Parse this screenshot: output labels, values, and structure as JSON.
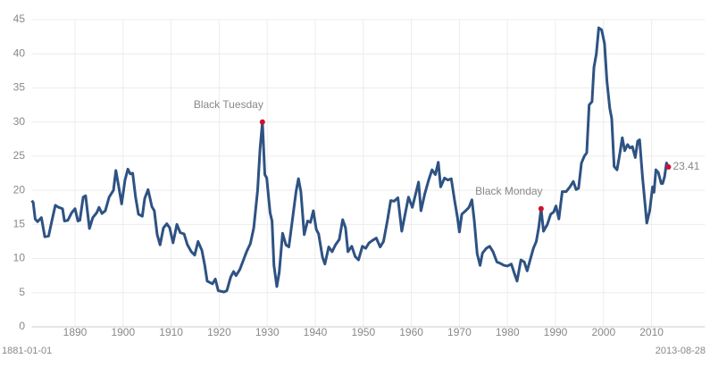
{
  "chart_data": {
    "type": "line",
    "x": [
      1881,
      1881.3,
      1881.7,
      1882.2,
      1883,
      1883.7,
      1884.5,
      1885.2,
      1885.9,
      1886.6,
      1887.4,
      1887.8,
      1888.5,
      1889.3,
      1890,
      1890.6,
      1891,
      1891.7,
      1892.2,
      1893,
      1893.7,
      1894.5,
      1895,
      1895.6,
      1896.3,
      1897.1,
      1898,
      1898.5,
      1899.1,
      1899.7,
      1900.4,
      1901,
      1901.5,
      1902,
      1902.6,
      1903.2,
      1904,
      1904.5,
      1905.2,
      1906,
      1906.5,
      1907.1,
      1907.7,
      1908.4,
      1909.1,
      1909.7,
      1910.4,
      1911.2,
      1911.9,
      1912.7,
      1913.4,
      1914.2,
      1914.9,
      1915.6,
      1916.4,
      1917,
      1917.5,
      1918.6,
      1919.2,
      1919.8,
      1921,
      1921.6,
      1922.4,
      1923,
      1923.5,
      1924.3,
      1925,
      1925.7,
      1926.5,
      1927.2,
      1928,
      1928.5,
      1929,
      1929.5,
      1929.9,
      1930.6,
      1931,
      1931.4,
      1932,
      1932.5,
      1933.2,
      1933.9,
      1934.5,
      1935.3,
      1936,
      1936.5,
      1937,
      1937.7,
      1938.4,
      1939,
      1939.6,
      1940.2,
      1940.7,
      1941.5,
      1942,
      1942.8,
      1943.5,
      1944.2,
      1945,
      1945.7,
      1946.3,
      1946.8,
      1947.6,
      1948.3,
      1949,
      1949.8,
      1950.5,
      1951.2,
      1952,
      1952.7,
      1953.5,
      1954.2,
      1955,
      1955.7,
      1956.4,
      1957.2,
      1958,
      1958.7,
      1959.4,
      1960.2,
      1960.9,
      1961.5,
      1962,
      1962.8,
      1963.6,
      1964.3,
      1965,
      1965.6,
      1966.1,
      1966.9,
      1967.6,
      1968.3,
      1969,
      1969.6,
      1970,
      1970.5,
      1971.3,
      1972,
      1972.6,
      1973.1,
      1973.7,
      1974.3,
      1974.8,
      1975.6,
      1976.3,
      1977,
      1977.8,
      1978.5,
      1979.3,
      1980,
      1980.8,
      1981.5,
      1982,
      1982.8,
      1983.5,
      1984.1,
      1984.8,
      1985.4,
      1986,
      1986.5,
      1987,
      1987.5,
      1988.3,
      1989,
      1989.6,
      1990.1,
      1990.7,
      1991.4,
      1992.2,
      1993,
      1993.7,
      1994.3,
      1994.8,
      1995.4,
      1996,
      1996.5,
      1997,
      1997.6,
      1998,
      1998.5,
      1999,
      1999.6,
      2000.2,
      2000.7,
      2001.3,
      2001.7,
      2002.2,
      2002.8,
      2003.3,
      2003.9,
      2004.4,
      2005,
      2005.5,
      2006,
      2006.6,
      2007.1,
      2007.5,
      2008.1,
      2008.5,
      2009,
      2009.6,
      2010.2,
      2010.5,
      2010.9,
      2011.4,
      2012,
      2012.3,
      2012.7,
      2013.1,
      2013.5
    ],
    "values": [
      18.5,
      18.2,
      15.8,
      15.4,
      16,
      13.2,
      13.3,
      15.6,
      17.8,
      17.5,
      17.3,
      15.5,
      15.6,
      16.7,
      17.3,
      15.5,
      15.6,
      19,
      19.2,
      14.4,
      16,
      16.7,
      17.5,
      16.6,
      17,
      19,
      20,
      22.9,
      20.5,
      18,
      21.5,
      23.1,
      22.4,
      22.5,
      19,
      16.5,
      16.2,
      18.8,
      20.1,
      17.6,
      17,
      13.5,
      12,
      14.5,
      15.1,
      14.5,
      12.3,
      15,
      13.8,
      13.6,
      12,
      11,
      10.5,
      12.5,
      11.2,
      9,
      6.7,
      6.3,
      7,
      5.3,
      5.1,
      5.3,
      7.3,
      8.1,
      7.5,
      8.4,
      9.7,
      11,
      12.2,
      14.5,
      20,
      26,
      30,
      22.3,
      21.8,
      16.7,
      15.5,
      9,
      5.9,
      8,
      13.7,
      12,
      11.7,
      16,
      19.8,
      21.7,
      19.8,
      13.5,
      15.5,
      15.3,
      17,
      14.3,
      13.6,
      10.2,
      9.2,
      11.7,
      11,
      12,
      12.8,
      15.7,
      14.5,
      11,
      11.8,
      10.3,
      9.8,
      11.8,
      11.5,
      12.3,
      12.7,
      13,
      11.7,
      12.5,
      15.5,
      18.5,
      18.4,
      18.9,
      14,
      16.5,
      19,
      17.5,
      19.5,
      21.2,
      17,
      19.5,
      21.5,
      23,
      22.3,
      24.1,
      20.5,
      21.8,
      21.5,
      21.7,
      18.5,
      16,
      13.9,
      16.5,
      17,
      17.5,
      18.6,
      15.5,
      10.7,
      9,
      10.8,
      11.5,
      11.8,
      11,
      9.5,
      9.3,
      9,
      8.9,
      9.2,
      7.7,
      6.7,
      9.8,
      9.5,
      8.2,
      10,
      11.5,
      12.5,
      14.5,
      17.3,
      14,
      15,
      16.5,
      16.8,
      17.7,
      15.8,
      19.8,
      19.8,
      20.5,
      21.3,
      20.1,
      20.3,
      24,
      25,
      25.5,
      32.5,
      33,
      38,
      40,
      43.8,
      43.5,
      41.5,
      36,
      32,
      30.5,
      23.5,
      23,
      25,
      27.7,
      25.8,
      26.7,
      26.2,
      26.4,
      24.8,
      27.2,
      27.4,
      22,
      19,
      15.2,
      17,
      20.5,
      19.7,
      23,
      22.6,
      21,
      21,
      22,
      24,
      23.41
    ],
    "color": "#2e5283",
    "xlim": [
      1881,
      2013.66
    ],
    "ylim": [
      0,
      45
    ],
    "xticks": [
      1890,
      1900,
      1910,
      1920,
      1930,
      1940,
      1950,
      1960,
      1970,
      1980,
      1990,
      2000,
      2010
    ],
    "yticks": [
      0,
      5,
      10,
      15,
      20,
      25,
      30,
      35,
      40,
      45
    ],
    "range_labels": [
      "1881-01-01",
      "2013-08-28"
    ],
    "grid": true,
    "marker_color": "#d0112b",
    "markers": [
      {
        "label": "Black Tuesday",
        "x": 1929,
        "y": 30
      },
      {
        "label": "Black Monday",
        "x": 1987,
        "y": 17.3
      },
      {
        "x": 2013.5,
        "y": 23.41
      }
    ]
  }
}
